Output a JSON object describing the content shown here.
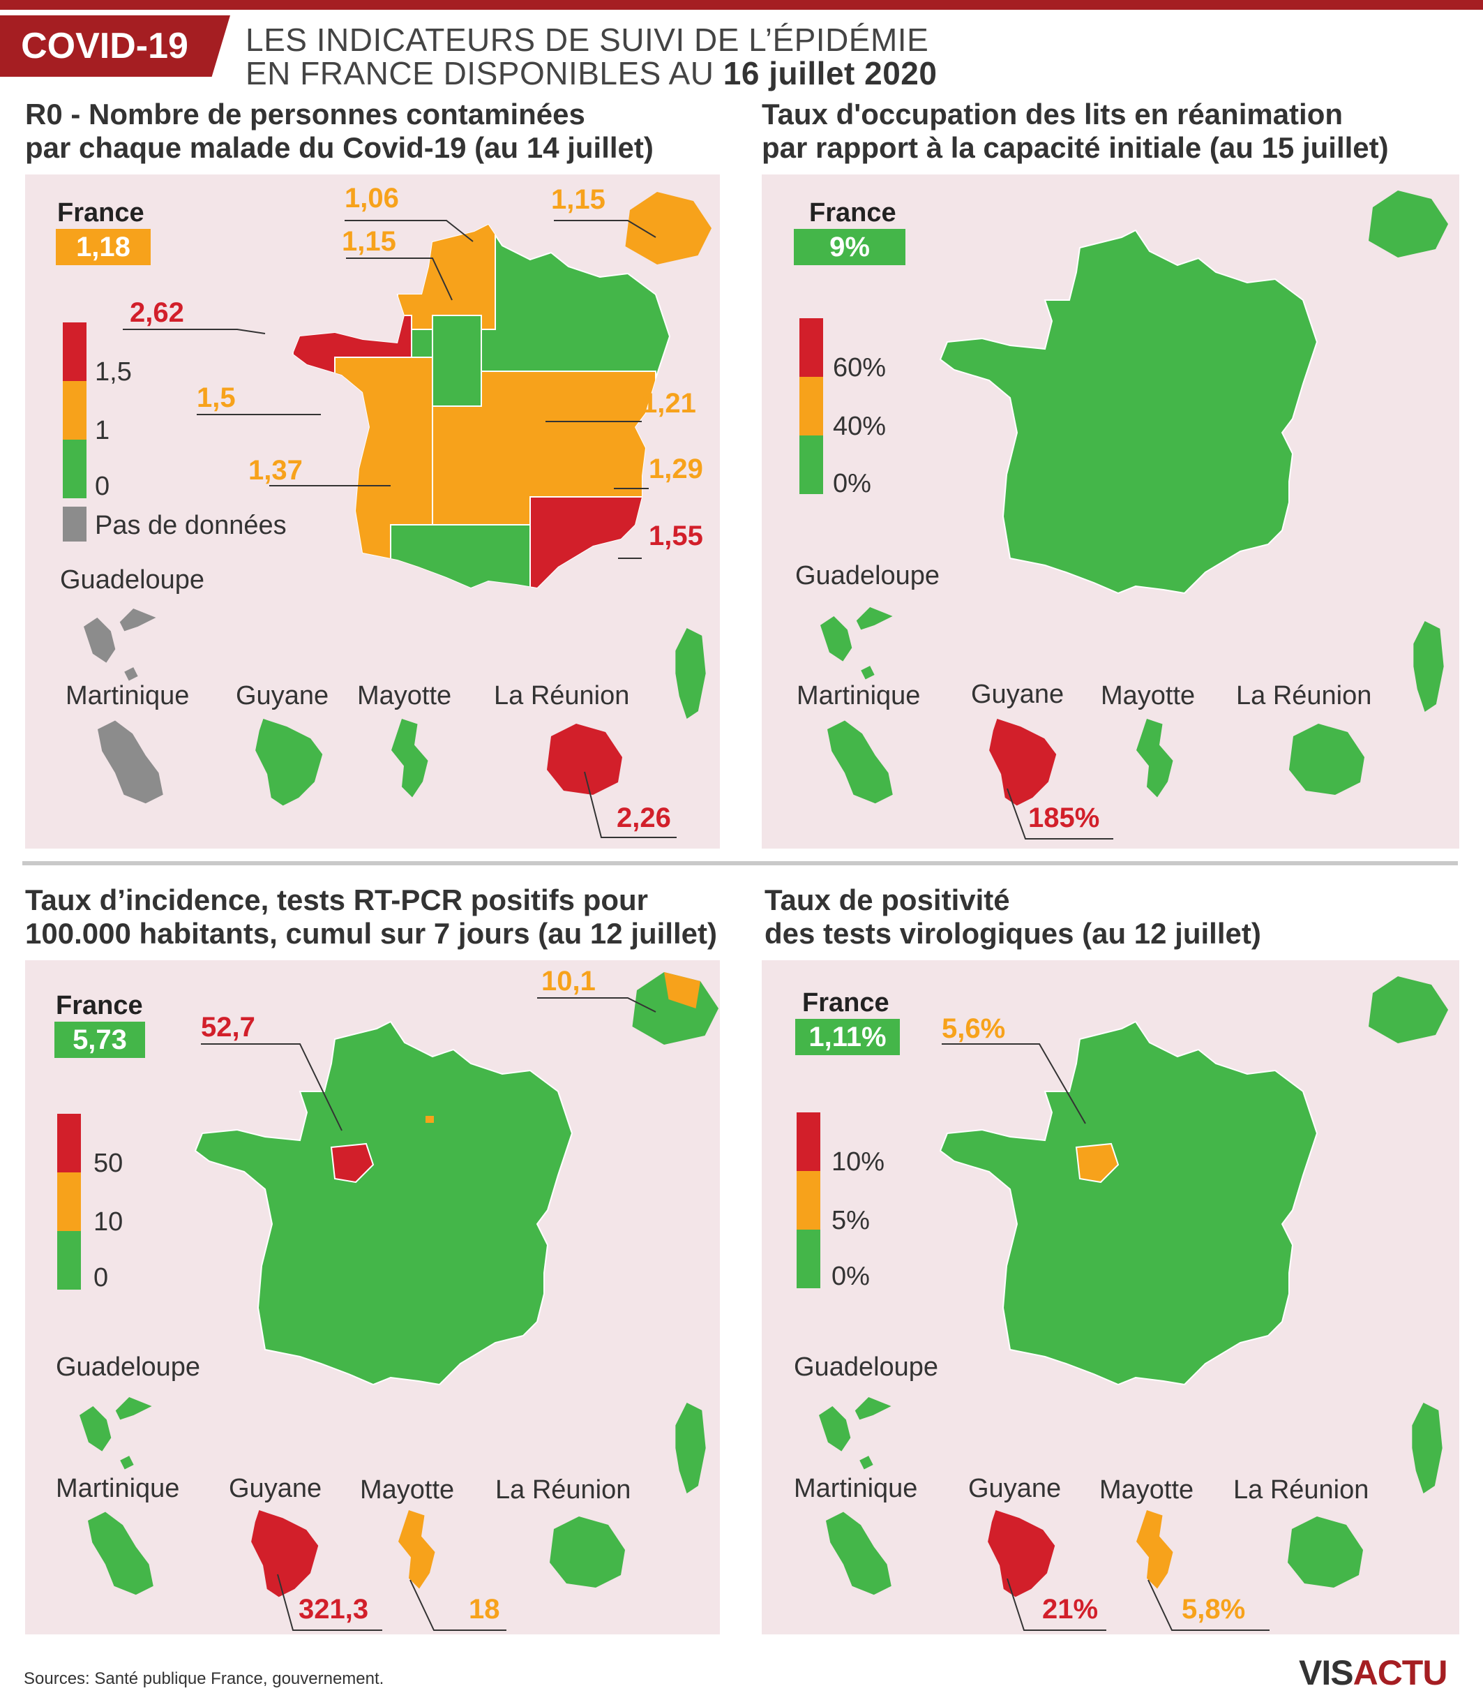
{
  "header": {
    "badge": "COVID-19",
    "title_line1": "LES INDICATEURS DE SUIVI DE L’ÉPIDÉMIE",
    "title_line2_prefix": "EN FRANCE DISPONIBLES AU ",
    "title_line2_date": "16 juillet 2020"
  },
  "colors": {
    "red": "#d21f2a",
    "orange": "#f7a21b",
    "green": "#44b649",
    "grey": "#8c8c8c",
    "panel": "#f3e5e8",
    "brand": "#a51e22"
  },
  "panels": [
    {
      "title1": "R0 - Nombre de personnes contaminées",
      "title2": "par chaque malade du Covid-19 (au 14 juillet)",
      "france_label": "France",
      "france_value": "1,18",
      "legend": [
        "1,5",
        "1",
        "0"
      ],
      "no_data": "Pas de données",
      "territories": [
        "Guadeloupe",
        "Martinique",
        "Guyane",
        "Mayotte",
        "La Réunion"
      ],
      "callouts": [
        "1,06",
        "1,15",
        "1,15",
        "2,62",
        "1,5",
        "1,21",
        "1,37",
        "1,29",
        "1,55",
        "2,26"
      ]
    },
    {
      "title1": "Taux d'occupation des lits en réanimation",
      "title2": "par rapport à la capacité initiale (au 15 juillet)",
      "france_label": "France",
      "france_value": "9%",
      "legend": [
        "60%",
        "40%",
        "0%"
      ],
      "territories": [
        "Guadeloupe",
        "Martinique",
        "Guyane",
        "Mayotte",
        "La Réunion"
      ],
      "callouts": [
        "185%"
      ]
    },
    {
      "title1": "Taux d’incidence, tests RT-PCR positifs pour",
      "title2": "100.000 habitants, cumul sur 7 jours (au 12 juillet)",
      "france_label": "France",
      "france_value": "5,73",
      "legend": [
        "50",
        "10",
        "0"
      ],
      "territories": [
        "Guadeloupe",
        "Martinique",
        "Guyane",
        "Mayotte",
        "La Réunion"
      ],
      "callouts": [
        "10,1",
        "52,7",
        "321,3",
        "18"
      ]
    },
    {
      "title1": "Taux de positivité",
      "title2": "des tests virologiques (au 12 juillet)",
      "france_label": "France",
      "france_value": "1,11%",
      "legend": [
        "10%",
        "5%",
        "0%"
      ],
      "territories": [
        "Guadeloupe",
        "Martinique",
        "Guyane",
        "Mayotte",
        "La Réunion"
      ],
      "callouts": [
        "5,6%",
        "21%",
        "5,8%"
      ]
    }
  ],
  "footer": {
    "sources": "Sources: Santé publique France, gouvernement.",
    "logo_a": "VIS",
    "logo_b": "ACTU"
  }
}
